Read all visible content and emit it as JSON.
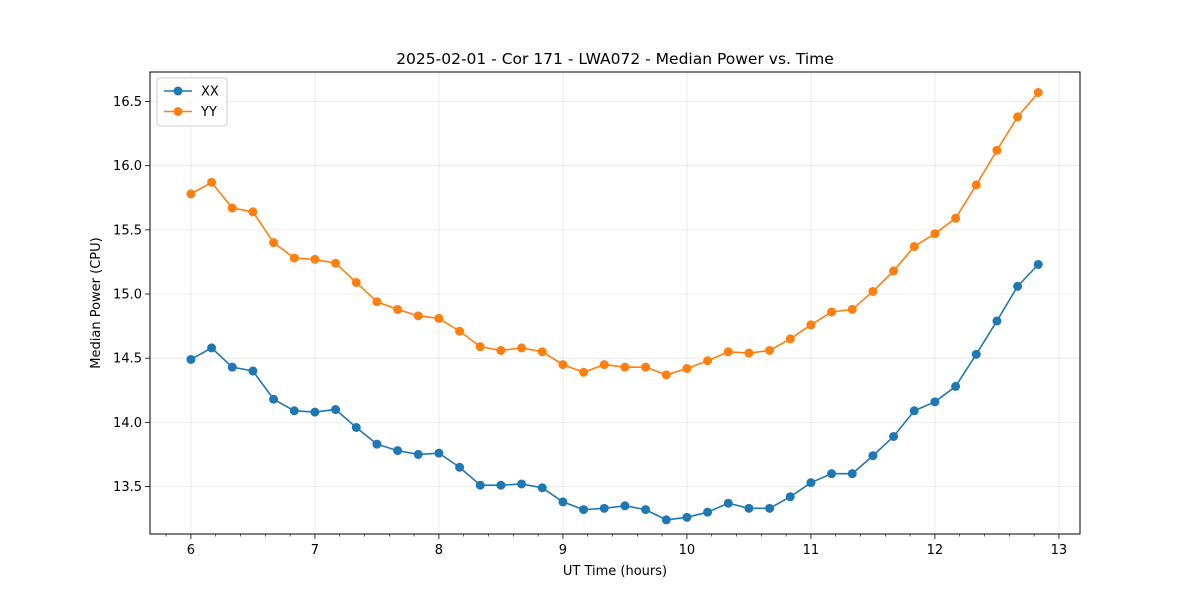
{
  "chart_data": {
    "type": "line",
    "title": "2025-02-01 - Cor 171 - LWA072 - Median Power vs. Time",
    "xlabel": "UT Time (hours)",
    "ylabel": "Median Power (CPU)",
    "xlim": [
      5.67,
      13.17
    ],
    "ylim": [
      13.13,
      16.73
    ],
    "xticks": [
      6,
      7,
      8,
      9,
      10,
      11,
      12,
      13
    ],
    "xtick_labels": [
      "6",
      "7",
      "8",
      "9",
      "10",
      "11",
      "12",
      "13"
    ],
    "yticks": [
      13.5,
      14.0,
      14.5,
      15.0,
      15.5,
      16.0,
      16.5
    ],
    "ytick_labels": [
      "13.5",
      "14.0",
      "14.5",
      "15.0",
      "15.5",
      "16.0",
      "16.5"
    ],
    "grid": true,
    "legend_position": "top-left",
    "x": [
      6.0,
      6.1667,
      6.3333,
      6.5,
      6.6667,
      6.8333,
      7.0,
      7.1667,
      7.3333,
      7.5,
      7.6667,
      7.8333,
      8.0,
      8.1667,
      8.3333,
      8.5,
      8.6667,
      8.8333,
      9.0,
      9.1667,
      9.3333,
      9.5,
      9.6667,
      9.8333,
      10.0,
      10.1667,
      10.3333,
      10.5,
      10.6667,
      10.8333,
      11.0,
      11.1667,
      11.3333,
      11.5,
      11.6667,
      11.8333,
      12.0,
      12.1667,
      12.3333,
      12.5,
      12.6667,
      12.8333
    ],
    "series": [
      {
        "name": "XX",
        "color": "#1f77b4",
        "values": [
          14.49,
          14.58,
          14.43,
          14.4,
          14.18,
          14.09,
          14.08,
          14.1,
          13.96,
          13.83,
          13.78,
          13.75,
          13.76,
          13.65,
          13.51,
          13.51,
          13.52,
          13.49,
          13.38,
          13.32,
          13.33,
          13.35,
          13.32,
          13.24,
          13.26,
          13.3,
          13.37,
          13.33,
          13.33,
          13.42,
          13.53,
          13.6,
          13.6,
          13.74,
          13.89,
          14.09,
          14.16,
          14.28,
          14.53,
          14.79,
          15.06,
          15.23
        ]
      },
      {
        "name": "YY",
        "color": "#ff7f0e",
        "values": [
          15.78,
          15.87,
          15.67,
          15.64,
          15.4,
          15.28,
          15.27,
          15.24,
          15.09,
          14.94,
          14.88,
          14.83,
          14.81,
          14.71,
          14.59,
          14.56,
          14.58,
          14.55,
          14.45,
          14.39,
          14.45,
          14.43,
          14.43,
          14.37,
          14.42,
          14.48,
          14.55,
          14.54,
          14.56,
          14.65,
          14.76,
          14.86,
          14.88,
          15.02,
          15.18,
          15.37,
          15.47,
          15.59,
          15.85,
          16.12,
          16.38,
          16.57
        ]
      }
    ]
  }
}
